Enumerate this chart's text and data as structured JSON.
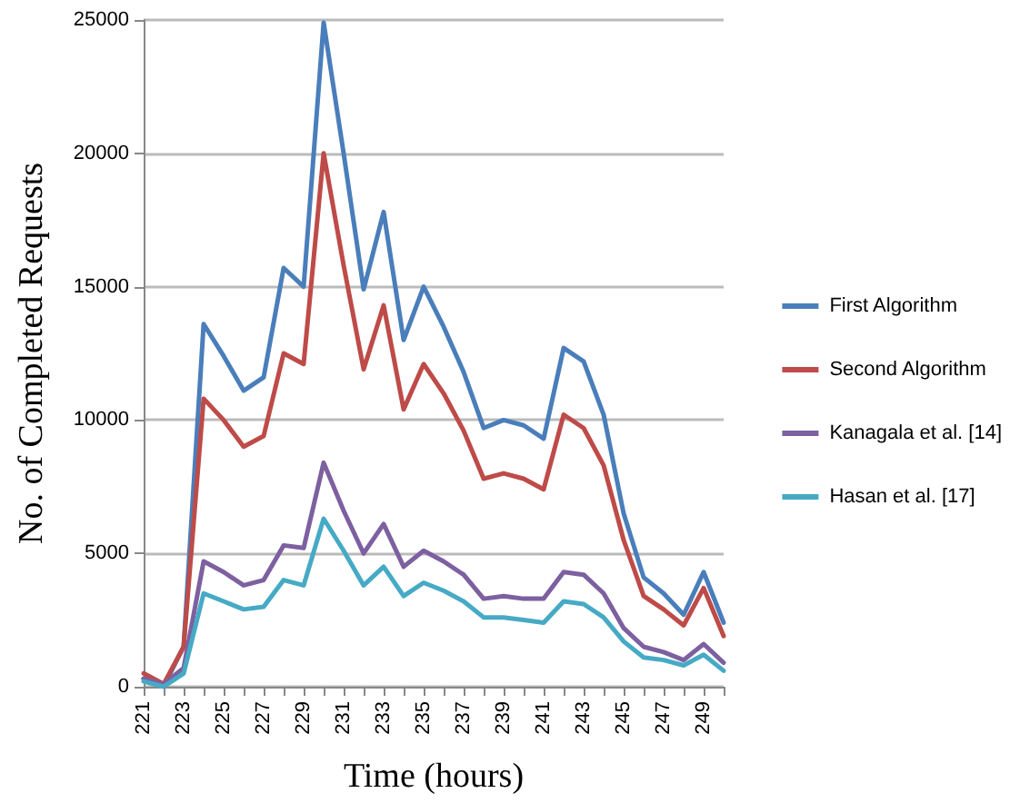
{
  "chart_data": {
    "type": "line",
    "xlabel": "Time (hours)",
    "ylabel": "No. of Completed Requests",
    "categories": [
      "221",
      null,
      "223",
      null,
      "225",
      null,
      "227",
      null,
      "229",
      null,
      "231",
      null,
      "233",
      null,
      "235",
      null,
      "237",
      null,
      "239",
      null,
      "241",
      null,
      "243",
      null,
      "245",
      null,
      "247",
      null,
      "249",
      null
    ],
    "series": [
      {
        "name": "First Algorithm",
        "color": "#4a7ebb",
        "values": [
          300,
          0,
          1500,
          13600,
          12400,
          11100,
          11600,
          15700,
          15000,
          24900,
          20000,
          14900,
          17800,
          13000,
          15000,
          13500,
          11800,
          9700,
          10000,
          9800,
          9300,
          12700,
          12200,
          10200,
          6500,
          4100,
          3500,
          2700,
          4300,
          2400
        ]
      },
      {
        "name": "Second Algorithm",
        "color": "#be4b48",
        "values": [
          500,
          100,
          1500,
          10800,
          10000,
          9000,
          9400,
          12500,
          12100,
          20000,
          15800,
          11900,
          14300,
          10400,
          12100,
          11000,
          9600,
          7800,
          8000,
          7800,
          7400,
          10200,
          9700,
          8300,
          5500,
          3400,
          2900,
          2300,
          3700,
          1900
        ]
      },
      {
        "name": "Kanagala et al. [14]",
        "color": "#7d60a0",
        "values": [
          300,
          100,
          700,
          4700,
          4300,
          3800,
          4000,
          5300,
          5200,
          8400,
          6600,
          5000,
          6100,
          4500,
          5100,
          4700,
          4200,
          3300,
          3400,
          3300,
          3300,
          4300,
          4200,
          3500,
          2200,
          1500,
          1300,
          1000,
          1600,
          900
        ]
      },
      {
        "name": "Hasan et al. [17]",
        "color": "#46aac5",
        "values": [
          200,
          0,
          500,
          3500,
          3200,
          2900,
          3000,
          4000,
          3800,
          6300,
          5100,
          3800,
          4500,
          3400,
          3900,
          3600,
          3200,
          2600,
          2600,
          2500,
          2400,
          3200,
          3100,
          2600,
          1700,
          1100,
          1000,
          800,
          1200,
          600
        ]
      }
    ],
    "ylim": [
      0,
      25000
    ],
    "yticks": [
      0,
      5000,
      10000,
      15000,
      20000,
      25000
    ],
    "grid": "y",
    "legend": "right",
    "marker": "none",
    "line_style": "solid"
  }
}
